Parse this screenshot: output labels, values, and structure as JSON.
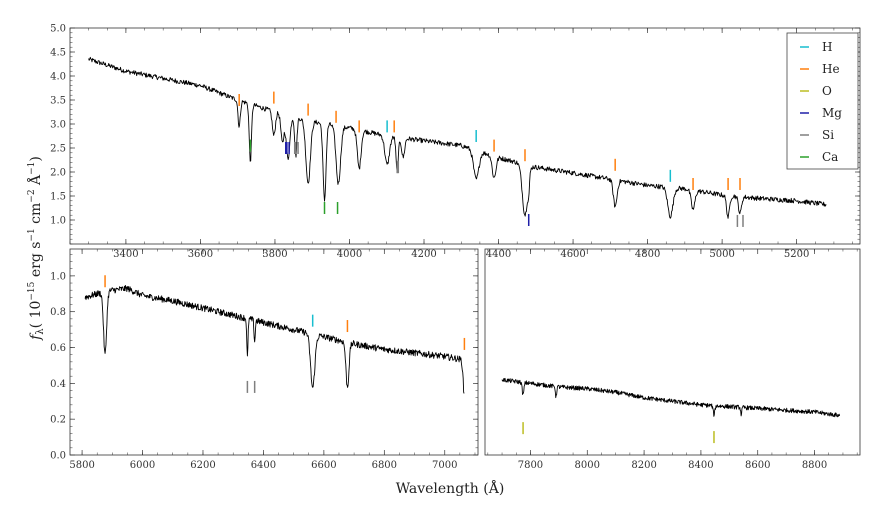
{
  "figure": {
    "xlabel": "Wavelength (Å)",
    "ylabel": "f",
    "ylabel_sub": "λ",
    "ylabel_unit_pre": "( 10",
    "ylabel_exp1": "−15",
    "ylabel_unit_mid1": " erg s",
    "ylabel_exp2": "−1",
    "ylabel_unit_mid2": " cm",
    "ylabel_exp3": "−2",
    "ylabel_unit_mid3": " Å",
    "ylabel_exp4": "−1",
    "ylabel_unit_end": ")"
  },
  "legend": {
    "placement": "top-right",
    "items": [
      {
        "label": "H",
        "color": "#17becf"
      },
      {
        "label": "He",
        "color": "#ff7f0e"
      },
      {
        "label": "O",
        "color": "#bcbd22"
      },
      {
        "label": "Mg",
        "color": "#1f1fa8"
      },
      {
        "label": "Si",
        "color": "#7f7f7f"
      },
      {
        "label": "Ca",
        "color": "#2ca02c"
      }
    ]
  },
  "chart_data": [
    {
      "type": "line",
      "panel": "top",
      "xlim": [
        3250,
        5370
      ],
      "ylim": [
        0.5,
        5.0
      ],
      "xticks": [
        "3400",
        "3600",
        "3800",
        "4000",
        "4200",
        "4400",
        "4600",
        "4800",
        "5000",
        "5200"
      ],
      "yticks": [
        "1.0",
        "1.5",
        "2.0",
        "2.5",
        "3.0",
        "3.5",
        "4.0",
        "4.5",
        "5.0"
      ],
      "continuum": [
        [
          3300,
          4.35
        ],
        [
          3400,
          4.1
        ],
        [
          3500,
          3.95
        ],
        [
          3600,
          3.8
        ],
        [
          3700,
          3.5
        ],
        [
          3800,
          3.25
        ],
        [
          3900,
          3.05
        ],
        [
          4000,
          2.92
        ],
        [
          4100,
          2.75
        ],
        [
          4200,
          2.65
        ],
        [
          4300,
          2.55
        ],
        [
          4400,
          2.3
        ],
        [
          4500,
          2.1
        ],
        [
          4600,
          1.98
        ],
        [
          4700,
          1.85
        ],
        [
          4800,
          1.72
        ],
        [
          4900,
          1.65
        ],
        [
          5000,
          1.52
        ],
        [
          5100,
          1.45
        ],
        [
          5200,
          1.4
        ],
        [
          5280,
          1.32
        ]
      ],
      "absorption_lines": [
        {
          "x": 3704,
          "depth": 0.55,
          "width": 3
        },
        {
          "x": 3734,
          "depth": 1.2,
          "width": 3
        },
        {
          "x": 3797,
          "depth": 0.5,
          "width": 4
        },
        {
          "x": 3820,
          "depth": 0.6,
          "width": 4
        },
        {
          "x": 3835,
          "depth": 0.9,
          "width": 5
        },
        {
          "x": 3856,
          "depth": 0.8,
          "width": 3
        },
        {
          "x": 3889,
          "depth": 1.3,
          "width": 6
        },
        {
          "x": 3933,
          "depth": 1.6,
          "width": 4
        },
        {
          "x": 3970,
          "depth": 1.2,
          "width": 6
        },
        {
          "x": 4026,
          "depth": 0.8,
          "width": 5
        },
        {
          "x": 4101,
          "depth": 0.6,
          "width": 6
        },
        {
          "x": 4128,
          "depth": 0.75,
          "width": 3
        },
        {
          "x": 4144,
          "depth": 0.4,
          "width": 4
        },
        {
          "x": 4340,
          "depth": 0.6,
          "width": 7
        },
        {
          "x": 4388,
          "depth": 0.45,
          "width": 5
        },
        {
          "x": 4471,
          "depth": 1.05,
          "width": 7
        },
        {
          "x": 4481,
          "depth": 0.3,
          "width": 2
        },
        {
          "x": 4713,
          "depth": 0.55,
          "width": 5
        },
        {
          "x": 4861,
          "depth": 0.6,
          "width": 7
        },
        {
          "x": 4922,
          "depth": 0.4,
          "width": 5
        },
        {
          "x": 5016,
          "depth": 0.45,
          "width": 4
        },
        {
          "x": 5048,
          "depth": 0.35,
          "width": 4
        }
      ],
      "markers": [
        {
          "x": 3704,
          "element": "He",
          "pos": "above",
          "y": 3.5
        },
        {
          "x": 3797,
          "element": "He",
          "pos": "above",
          "y": 3.55
        },
        {
          "x": 3889,
          "element": "He",
          "pos": "above",
          "y": 3.3
        },
        {
          "x": 3964,
          "element": "He",
          "pos": "above",
          "y": 3.15
        },
        {
          "x": 4026,
          "element": "He",
          "pos": "above",
          "y": 2.95
        },
        {
          "x": 4101,
          "element": "H",
          "pos": "above",
          "y": 2.95
        },
        {
          "x": 4120,
          "element": "He",
          "pos": "above",
          "y": 2.95
        },
        {
          "x": 4340,
          "element": "H",
          "pos": "above",
          "y": 2.75
        },
        {
          "x": 4388,
          "element": "He",
          "pos": "above",
          "y": 2.55
        },
        {
          "x": 4471,
          "element": "He",
          "pos": "above",
          "y": 2.35
        },
        {
          "x": 4713,
          "element": "He",
          "pos": "above",
          "y": 2.15
        },
        {
          "x": 4861,
          "element": "H",
          "pos": "above",
          "y": 1.92
        },
        {
          "x": 4922,
          "element": "He",
          "pos": "above",
          "y": 1.75
        },
        {
          "x": 5016,
          "element": "He",
          "pos": "above",
          "y": 1.75
        },
        {
          "x": 5048,
          "element": "He",
          "pos": "above",
          "y": 1.75
        },
        {
          "x": 3734,
          "element": "Ca",
          "pos": "below",
          "y": 2.55
        },
        {
          "x": 3829,
          "element": "Mg",
          "pos": "below",
          "y": 2.5
        },
        {
          "x": 3832,
          "element": "Mg",
          "pos": "below",
          "y": 2.5
        },
        {
          "x": 3838,
          "element": "Mg",
          "pos": "below",
          "y": 2.5
        },
        {
          "x": 3853,
          "element": "Si",
          "pos": "below",
          "y": 2.5
        },
        {
          "x": 3856,
          "element": "Si",
          "pos": "below",
          "y": 2.5
        },
        {
          "x": 3862,
          "element": "Si",
          "pos": "below",
          "y": 2.5
        },
        {
          "x": 4128,
          "element": "Si",
          "pos": "below",
          "y": 2.1
        },
        {
          "x": 4131,
          "element": "Si",
          "pos": "below",
          "y": 2.1
        },
        {
          "x": 3933,
          "element": "Ca",
          "pos": "below",
          "y": 1.25
        },
        {
          "x": 3968,
          "element": "Ca",
          "pos": "below",
          "y": 1.25
        },
        {
          "x": 4481,
          "element": "Mg",
          "pos": "below",
          "y": 1.0
        },
        {
          "x": 5041,
          "element": "Si",
          "pos": "below",
          "y": 0.98
        },
        {
          "x": 5056,
          "element": "Si",
          "pos": "below",
          "y": 0.98
        }
      ]
    },
    {
      "type": "line",
      "panel": "bottom-left",
      "xlim": [
        5760,
        7110
      ],
      "ylim": [
        0.0,
        1.15
      ],
      "xticks": [
        "5800",
        "6000",
        "6200",
        "6400",
        "6600",
        "6800",
        "7000"
      ],
      "yticks": [
        "0.0",
        "0.2",
        "0.4",
        "0.6",
        "0.8",
        "1.0"
      ],
      "continuum": [
        [
          5810,
          0.88
        ],
        [
          5850,
          0.9
        ],
        [
          5900,
          0.92
        ],
        [
          5950,
          0.93
        ],
        [
          6000,
          0.89
        ],
        [
          6100,
          0.86
        ],
        [
          6200,
          0.82
        ],
        [
          6300,
          0.78
        ],
        [
          6400,
          0.74
        ],
        [
          6500,
          0.7
        ],
        [
          6600,
          0.66
        ],
        [
          6700,
          0.62
        ],
        [
          6800,
          0.59
        ],
        [
          6900,
          0.57
        ],
        [
          7000,
          0.55
        ],
        [
          7065,
          0.53
        ]
      ],
      "absorption_lines": [
        {
          "x": 5876,
          "depth": 0.35,
          "width": 5
        },
        {
          "x": 6347,
          "depth": 0.22,
          "width": 2
        },
        {
          "x": 6371,
          "depth": 0.12,
          "width": 2
        },
        {
          "x": 6563,
          "depth": 0.3,
          "width": 7
        },
        {
          "x": 6678,
          "depth": 0.25,
          "width": 5
        },
        {
          "x": 7065,
          "depth": 0.2,
          "width": 4
        }
      ],
      "markers": [
        {
          "x": 5876,
          "element": "He",
          "pos": "above",
          "y": 0.97
        },
        {
          "x": 6563,
          "element": "H",
          "pos": "above",
          "y": 0.75
        },
        {
          "x": 6678,
          "element": "He",
          "pos": "above",
          "y": 0.72
        },
        {
          "x": 7065,
          "element": "He",
          "pos": "above",
          "y": 0.62
        },
        {
          "x": 6347,
          "element": "Si",
          "pos": "below",
          "y": 0.38
        },
        {
          "x": 6371,
          "element": "Si",
          "pos": "below",
          "y": 0.38
        }
      ]
    },
    {
      "type": "line",
      "panel": "bottom-right",
      "xlim": [
        7640,
        8960
      ],
      "ylim": [
        0.0,
        1.15
      ],
      "xticks": [
        "7800",
        "8000",
        "8200",
        "8400",
        "8600",
        "8800"
      ],
      "yticks": [],
      "continuum": [
        [
          7700,
          0.42
        ],
        [
          7800,
          0.4
        ],
        [
          7900,
          0.38
        ],
        [
          8000,
          0.37
        ],
        [
          8100,
          0.35
        ],
        [
          8200,
          0.32
        ],
        [
          8300,
          0.3
        ],
        [
          8400,
          0.28
        ],
        [
          8500,
          0.27
        ],
        [
          8600,
          0.26
        ],
        [
          8700,
          0.25
        ],
        [
          8800,
          0.24
        ],
        [
          8890,
          0.22
        ]
      ],
      "absorption_lines": [
        {
          "x": 7774,
          "depth": 0.07,
          "width": 3
        },
        {
          "x": 7890,
          "depth": 0.06,
          "width": 2
        },
        {
          "x": 8446,
          "depth": 0.05,
          "width": 3
        },
        {
          "x": 8542,
          "depth": 0.04,
          "width": 2
        }
      ],
      "markers": [
        {
          "x": 7774,
          "element": "O",
          "pos": "below",
          "y": 0.15
        },
        {
          "x": 8446,
          "element": "O",
          "pos": "below",
          "y": 0.1
        }
      ]
    }
  ]
}
